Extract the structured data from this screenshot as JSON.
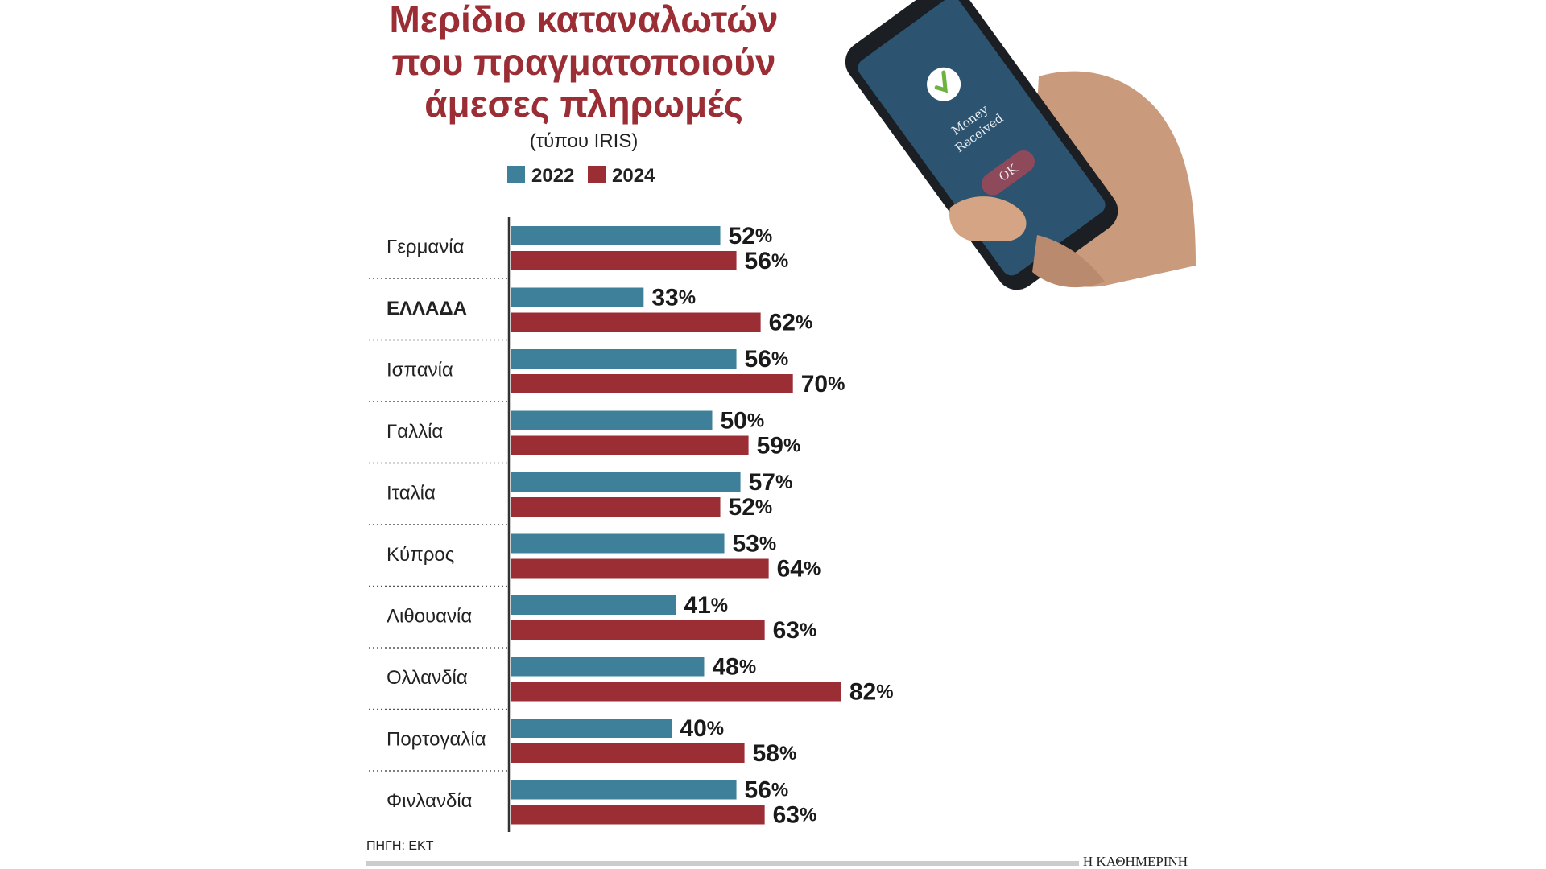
{
  "colors": {
    "title": "#9b2d35",
    "series_2022": "#3e8099",
    "series_2024": "#9b2d35",
    "axis": "#333333",
    "separator": "#555555"
  },
  "chart_data": {
    "type": "bar",
    "orientation": "horizontal",
    "title": [
      "Μερίδιο καταναλωτών",
      "που πραγματοποιούν",
      "άμεσες πληρωμές"
    ],
    "subtitle": "(τύπου IRIS)",
    "unit": "%",
    "categories": [
      "Γερμανία",
      "ΕΛΛΑΔΑ",
      "Ισπανία",
      "Γαλλία",
      "Ιταλία",
      "Κύπρος",
      "Λιθουανία",
      "Ολλανδία",
      "Πορτογαλία",
      "Φινλανδία"
    ],
    "highlight_category": "ΕΛΛΑΔΑ",
    "series": [
      {
        "name": "2022",
        "values": [
          52,
          33,
          56,
          50,
          57,
          53,
          41,
          48,
          40,
          56
        ]
      },
      {
        "name": "2024",
        "values": [
          56,
          62,
          70,
          59,
          52,
          64,
          63,
          82,
          58,
          63
        ]
      }
    ],
    "xlim": [
      0,
      100
    ],
    "legend_position": "top",
    "grid": false
  },
  "footer": {
    "source": "ΠΗΓΗ: ΕΚΤ",
    "brand": "Η ΚΑΘΗΜΕΡΙΝΗ"
  },
  "illustration": {
    "icon": "phone-in-hand-icon",
    "screen_text": [
      "Money",
      "Received"
    ],
    "button_text": "OK"
  }
}
